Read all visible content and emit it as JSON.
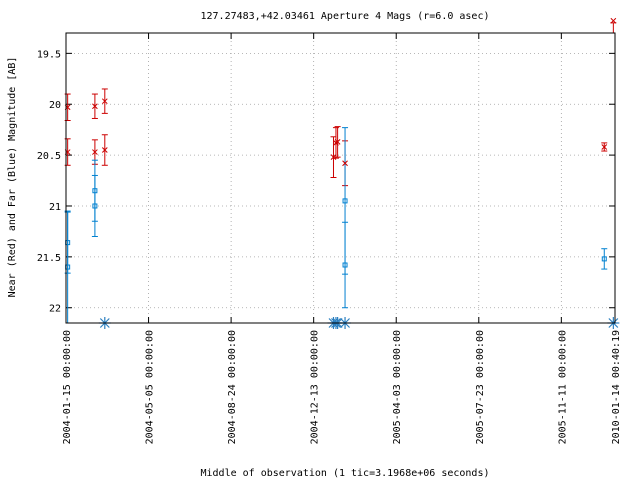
{
  "chart_data": {
    "type": "scatter",
    "title": "127.27483,+42.03461   Aperture 4 Mags (r=6.0 asec)",
    "xlabel": "Middle of observation (1 tic=3.1968e+06 seconds)",
    "ylabel": "Near (Red) and Far (Blue) Magnitude [AB]",
    "x_ticks": [
      {
        "label": "2004-01-15 00:00:00",
        "x": 0
      },
      {
        "label": "2004-05-05 00:00:00",
        "x": 1
      },
      {
        "label": "2004-08-24 00:00:00",
        "x": 2
      },
      {
        "label": "2004-12-13 00:00:00",
        "x": 3
      },
      {
        "label": "2005-04-03 00:00:00",
        "x": 4
      },
      {
        "label": "2005-07-23 00:00:00",
        "x": 5
      },
      {
        "label": "2005-11-11 00:00:00",
        "x": 6
      },
      {
        "label": "2010-01-14 00:40:19",
        "x": 6.65
      }
    ],
    "xlim": [
      0,
      6.65
    ],
    "ylim": [
      22.15,
      19.3
    ],
    "y_ticks": [
      19.5,
      20,
      20.5,
      21,
      21.5,
      22
    ],
    "y_tick_labels": [
      "19.5",
      "20",
      "20.5",
      "21",
      "21.5",
      "22"
    ],
    "colors": {
      "near": "#cc0000",
      "far": "#0080d0",
      "marker": "#2a7fc0"
    },
    "series": [
      {
        "name": "Near",
        "marker": "x",
        "points": [
          {
            "x": 0.02,
            "y": 20.03,
            "err": 0.13
          },
          {
            "x": 0.02,
            "y": 20.47,
            "err": 0.13
          },
          {
            "x": 0.35,
            "y": 20.02,
            "err": 0.12
          },
          {
            "x": 0.35,
            "y": 20.47,
            "err": 0.12
          },
          {
            "x": 0.47,
            "y": 19.97,
            "err": 0.12
          },
          {
            "x": 0.47,
            "y": 20.45,
            "err": 0.15
          },
          {
            "x": 3.24,
            "y": 20.52,
            "err": 0.2
          },
          {
            "x": 3.27,
            "y": 20.38,
            "err": 0.15
          },
          {
            "x": 3.29,
            "y": 20.37,
            "err": 0.15
          },
          {
            "x": 3.38,
            "y": 20.58,
            "err": 0.22
          },
          {
            "x": 6.52,
            "y": 20.42,
            "err": 0.04
          },
          {
            "x": 6.63,
            "y": 19.18,
            "err": 0.02
          }
        ]
      },
      {
        "name": "Far",
        "marker": "square",
        "points": [
          {
            "x": 0.02,
            "y": 21.36,
            "err": 0.3
          },
          {
            "x": 0.02,
            "y": 21.6,
            "err": 0.55
          },
          {
            "x": 0.35,
            "y": 20.85,
            "err": 0.3
          },
          {
            "x": 0.35,
            "y": 21.0,
            "err": 0.3
          },
          {
            "x": 3.38,
            "y": 20.95,
            "err": 0.72
          },
          {
            "x": 3.38,
            "y": 21.58,
            "err": 0.42
          },
          {
            "x": 6.52,
            "y": 21.52,
            "err": 0.1
          }
        ]
      }
    ],
    "bottom_markers_x": [
      0.47,
      3.24,
      3.27,
      3.29,
      3.38,
      6.63
    ]
  }
}
